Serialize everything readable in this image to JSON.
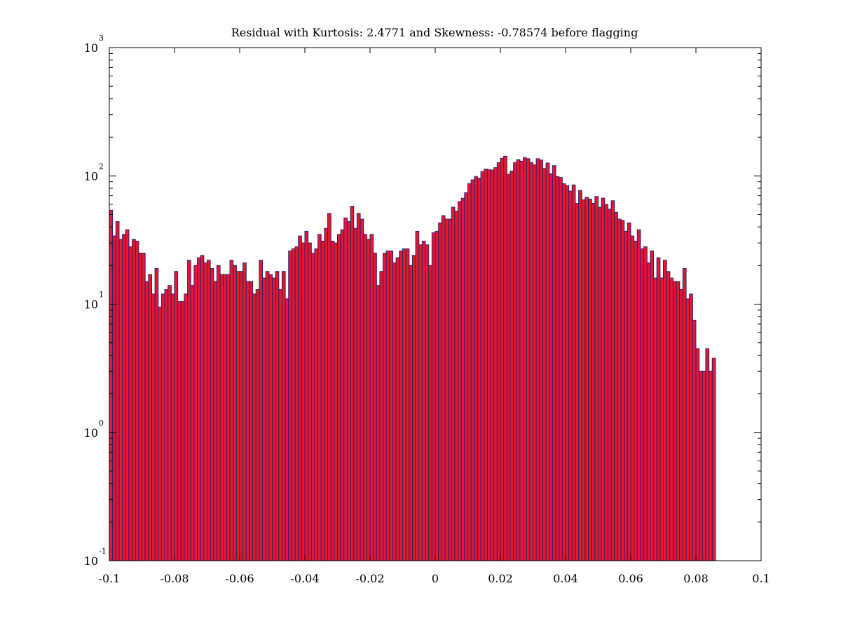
{
  "chart_data": {
    "type": "bar",
    "title": "Residual with Kurtosis: 2.4771 and Skewness: -0.78574 before flagging",
    "xlabel": "",
    "ylabel": "",
    "y_scale": "log",
    "xlim": [
      -0.1,
      0.1
    ],
    "ylim": [
      0.1,
      1000
    ],
    "x_ticks": [
      {
        "value": -0.1,
        "label": "-0.1"
      },
      {
        "value": -0.08,
        "label": "-0.08"
      },
      {
        "value": -0.06,
        "label": "-0.06"
      },
      {
        "value": -0.04,
        "label": "-0.04"
      },
      {
        "value": -0.02,
        "label": "-0.02"
      },
      {
        "value": 0,
        "label": "0"
      },
      {
        "value": 0.02,
        "label": "0.02"
      },
      {
        "value": 0.04,
        "label": "0.04"
      },
      {
        "value": 0.06,
        "label": "0.06"
      },
      {
        "value": 0.08,
        "label": "0.08"
      },
      {
        "value": 0.1,
        "label": "0.1"
      }
    ],
    "y_ticks": [
      {
        "value": 0.1,
        "base": "10",
        "exp": "-1"
      },
      {
        "value": 1,
        "base": "10",
        "exp": "0"
      },
      {
        "value": 10,
        "base": "10",
        "exp": "1"
      },
      {
        "value": 100,
        "base": "10",
        "exp": "2"
      },
      {
        "value": 1000,
        "base": "10",
        "exp": "3"
      }
    ],
    "grid": false,
    "bar_fill": "#e8172f",
    "bar_edge": "#28206e",
    "bin_width": 0.001,
    "bin_start": -0.1,
    "values": [
      54,
      34,
      44,
      32,
      35,
      38,
      28,
      32,
      31,
      25,
      25,
      15,
      17,
      12,
      19,
      9.5,
      12,
      13,
      14,
      12,
      18,
      10.5,
      10.5,
      12,
      22,
      14,
      20,
      23,
      24,
      21,
      22,
      19,
      15,
      20,
      17,
      17,
      17,
      22,
      20,
      18,
      18,
      21,
      15,
      15,
      12,
      13,
      22,
      16,
      18,
      17,
      16,
      18,
      13,
      18,
      11,
      26,
      27,
      28,
      34,
      30,
      37,
      30,
      25,
      27,
      35,
      31,
      39,
      51,
      31,
      30,
      35,
      38,
      47,
      44,
      58,
      39,
      51,
      46,
      35,
      32,
      35,
      25,
      14,
      18,
      25,
      26,
      26,
      21,
      23,
      26,
      27,
      27,
      20,
      24,
      37,
      29,
      31,
      29,
      20,
      36,
      37,
      43,
      49,
      46,
      46,
      57,
      53,
      63,
      67,
      74,
      87,
      93,
      99,
      96,
      108,
      113,
      112,
      111,
      116,
      127,
      137,
      142,
      103,
      109,
      127,
      134,
      130,
      139,
      136,
      127,
      122,
      136,
      133,
      114,
      126,
      104,
      120,
      99,
      97,
      87,
      84,
      76,
      85,
      61,
      77,
      65,
      68,
      66,
      61,
      69,
      57,
      67,
      60,
      55,
      64,
      52,
      46,
      45,
      37,
      43,
      34,
      31,
      38,
      27,
      28,
      21,
      26,
      16,
      23,
      16,
      22,
      18,
      16,
      15,
      15,
      13,
      19,
      11,
      12,
      7.5,
      4.5,
      3,
      3,
      4.5,
      3,
      3.8
    ]
  }
}
